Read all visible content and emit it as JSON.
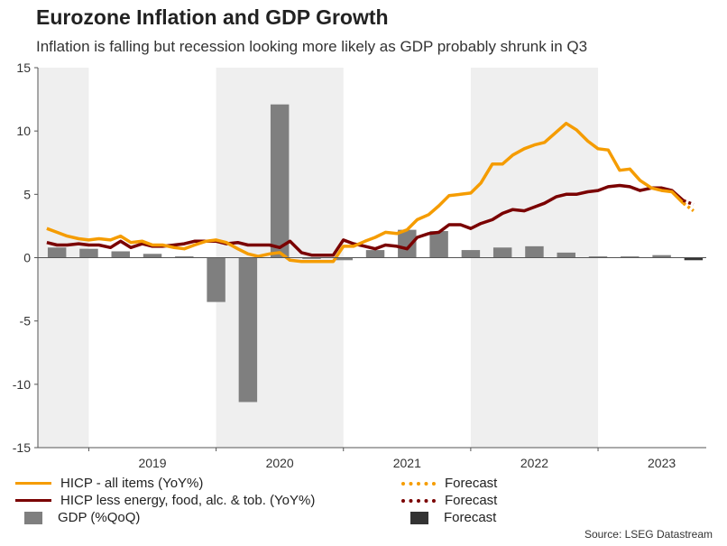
{
  "header": {
    "title": "Eurozone Inflation and GDP Growth",
    "subtitle": "Inflation is falling but recession looking more likely as GDP probably shrunk in Q3"
  },
  "source": "Source: LSEG Datastream",
  "colors": {
    "hicp": "#f59c00",
    "core": "#7a0000",
    "gdp": "#7f7f7f",
    "gdp_forecast": "#333333",
    "shade": "#efefef",
    "axis": "#555555"
  },
  "legend": {
    "hicp": "HICP - all items (YoY%)",
    "core": "HICP less energy, food, alc. & tob. (YoY%)",
    "gdp": "GDP (%QoQ)",
    "forecast_hicp": "Forecast",
    "forecast_core": "Forecast",
    "forecast_gdp": "Forecast"
  },
  "chart_data": {
    "type": "bar+line",
    "title": "Eurozone Inflation and GDP Growth",
    "ylim": [
      -15,
      15
    ],
    "y_ticks": [
      "15",
      "10",
      "5",
      "0",
      "-5",
      "-10",
      "-15"
    ],
    "y_tick_values": [
      15,
      10,
      5,
      0,
      -5,
      -10,
      -15
    ],
    "x_range": [
      2018.6,
      2023.85
    ],
    "year_labels": [
      "2019",
      "2020",
      "2021",
      "2022",
      "2023"
    ],
    "year_label_positions": [
      2019.5,
      2020.5,
      2021.5,
      2022.5,
      2023.5
    ],
    "shaded_years": [
      [
        2018.6,
        2019.0
      ],
      [
        2020.0,
        2021.0
      ],
      [
        2022.0,
        2023.0
      ]
    ],
    "gdp": {
      "name": "GDP (%QoQ)",
      "quarters": [
        2018.75,
        2019.0,
        2019.25,
        2019.5,
        2019.75,
        2020.0,
        2020.25,
        2020.5,
        2020.75,
        2021.0,
        2021.25,
        2021.5,
        2021.75,
        2022.0,
        2022.25,
        2022.5,
        2022.75,
        2023.0,
        2023.25,
        2023.5
      ],
      "values": [
        0.8,
        0.7,
        0.5,
        0.3,
        0.1,
        -3.5,
        -11.4,
        12.1,
        -0.1,
        -0.2,
        0.6,
        2.2,
        2.1,
        0.6,
        0.8,
        0.9,
        0.4,
        0.1,
        0.1,
        0.2
      ],
      "forecast_quarter": 2023.75,
      "forecast_value": -0.2
    },
    "hicp": {
      "name": "HICP - all items (YoY%)",
      "x": [
        2018.67,
        2018.75,
        2018.83,
        2018.92,
        2019.0,
        2019.08,
        2019.17,
        2019.25,
        2019.33,
        2019.42,
        2019.5,
        2019.58,
        2019.67,
        2019.75,
        2019.83,
        2019.92,
        2020.0,
        2020.08,
        2020.17,
        2020.25,
        2020.33,
        2020.42,
        2020.5,
        2020.58,
        2020.67,
        2020.75,
        2020.83,
        2020.92,
        2021.0,
        2021.08,
        2021.17,
        2021.25,
        2021.33,
        2021.42,
        2021.5,
        2021.58,
        2021.67,
        2021.75,
        2021.83,
        2021.92,
        2022.0,
        2022.08,
        2022.17,
        2022.25,
        2022.33,
        2022.42,
        2022.5,
        2022.58,
        2022.67,
        2022.75,
        2022.83,
        2022.92,
        2023.0,
        2023.08,
        2023.17,
        2023.25,
        2023.33,
        2023.42,
        2023.5,
        2023.58,
        2023.67
      ],
      "values": [
        2.3,
        2.0,
        1.7,
        1.5,
        1.4,
        1.5,
        1.4,
        1.7,
        1.2,
        1.3,
        1.0,
        1.0,
        0.8,
        0.7,
        1.0,
        1.3,
        1.4,
        1.2,
        0.7,
        0.3,
        0.1,
        0.3,
        0.4,
        -0.2,
        -0.3,
        -0.3,
        -0.3,
        -0.3,
        0.9,
        0.9,
        1.3,
        1.6,
        2.0,
        1.9,
        2.2,
        3.0,
        3.4,
        4.1,
        4.9,
        5.0,
        5.1,
        5.9,
        7.4,
        7.4,
        8.1,
        8.6,
        8.9,
        9.1,
        9.9,
        10.6,
        10.1,
        9.2,
        8.6,
        8.5,
        6.9,
        7.0,
        6.1,
        5.5,
        5.3,
        5.2,
        4.3
      ],
      "forecast_x": [
        2023.67,
        2023.75
      ],
      "forecast_values": [
        4.3,
        3.7
      ]
    },
    "core": {
      "name": "HICP less energy, food, alc. & tob. (YoY%)",
      "x": [
        2018.67,
        2018.75,
        2018.83,
        2018.92,
        2019.0,
        2019.08,
        2019.17,
        2019.25,
        2019.33,
        2019.42,
        2019.5,
        2019.58,
        2019.67,
        2019.75,
        2019.83,
        2019.92,
        2020.0,
        2020.08,
        2020.17,
        2020.25,
        2020.33,
        2020.42,
        2020.5,
        2020.58,
        2020.67,
        2020.75,
        2020.83,
        2020.92,
        2021.0,
        2021.08,
        2021.17,
        2021.25,
        2021.33,
        2021.42,
        2021.5,
        2021.58,
        2021.67,
        2021.75,
        2021.83,
        2021.92,
        2022.0,
        2022.08,
        2022.17,
        2022.25,
        2022.33,
        2022.42,
        2022.5,
        2022.58,
        2022.67,
        2022.75,
        2022.83,
        2022.92,
        2023.0,
        2023.08,
        2023.17,
        2023.25,
        2023.33,
        2023.42,
        2023.5,
        2023.58,
        2023.67
      ],
      "values": [
        1.2,
        1.0,
        1.0,
        1.1,
        1.0,
        1.0,
        0.8,
        1.3,
        0.8,
        1.1,
        0.9,
        0.9,
        1.0,
        1.1,
        1.3,
        1.3,
        1.3,
        1.1,
        1.2,
        1.0,
        1.0,
        1.0,
        0.8,
        1.3,
        0.4,
        0.2,
        0.2,
        0.2,
        1.4,
        1.1,
        0.9,
        0.7,
        1.0,
        0.9,
        0.7,
        1.6,
        1.9,
        2.0,
        2.6,
        2.6,
        2.3,
        2.7,
        3.0,
        3.5,
        3.8,
        3.7,
        4.0,
        4.3,
        4.8,
        5.0,
        5.0,
        5.2,
        5.3,
        5.6,
        5.7,
        5.6,
        5.3,
        5.5,
        5.5,
        5.3,
        4.5
      ],
      "forecast_x": [
        2023.67,
        2023.75
      ],
      "forecast_values": [
        4.5,
        4.2
      ]
    }
  }
}
